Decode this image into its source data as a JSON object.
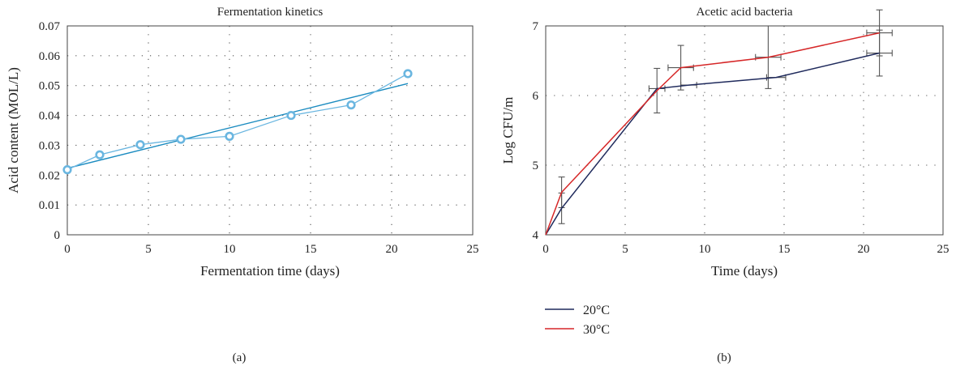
{
  "panel_labels": [
    "(a)",
    "(b)"
  ],
  "legend": {
    "items": [
      {
        "label": "20°C",
        "color": "#1f2a5c"
      },
      {
        "label": "30°C",
        "color": "#d62728"
      }
    ]
  },
  "chart_data": [
    {
      "type": "line",
      "title": "Fermentation kinetics",
      "xlabel": "Fermentation time (days)",
      "ylabel": "Acid content (MOL/L)",
      "xlim": [
        0,
        25
      ],
      "ylim": [
        0,
        0.07
      ],
      "xticks": [
        0,
        5,
        10,
        15,
        20,
        25
      ],
      "xtick_labels": [
        "0",
        "5",
        "10",
        "15",
        "20",
        "25"
      ],
      "yticks": [
        0,
        0.01,
        0.02,
        0.03,
        0.04,
        0.05,
        0.06,
        0.07
      ],
      "ytick_labels": [
        "0",
        "0.01",
        "0.02",
        "0.03",
        "0.04",
        "0.05",
        "0.06",
        "0.07"
      ],
      "grid": true,
      "grid_style": "dotted",
      "series": [
        {
          "kind": "markers-line",
          "color": "#6ab6e0",
          "x": [
            0,
            2,
            4.5,
            7,
            10,
            13.8,
            17.5,
            21
          ],
          "y": [
            0.0218,
            0.0268,
            0.0302,
            0.032,
            0.033,
            0.04,
            0.0435,
            0.054
          ]
        },
        {
          "kind": "trend-line",
          "color": "#1a8bc0",
          "x": [
            0,
            21
          ],
          "y": [
            0.0223,
            0.0507
          ]
        }
      ]
    },
    {
      "type": "line",
      "title": "Acetic acid bacteria",
      "xlabel": "Time (days)",
      "ylabel": "Log CFU/m",
      "xlim": [
        0,
        25
      ],
      "ylim": [
        4,
        7
      ],
      "xticks": [
        0,
        5,
        10,
        15,
        20,
        25
      ],
      "xtick_labels": [
        "0",
        "5",
        "10",
        "15",
        "20",
        "25"
      ],
      "yticks": [
        4,
        5,
        6,
        7
      ],
      "ytick_labels": [
        "4",
        "5",
        "6",
        "7"
      ],
      "grid": true,
      "grid_style": "dotted",
      "series": [
        {
          "name": "20°C",
          "color": "#1f2a5c",
          "x": [
            0,
            1,
            7,
            9,
            14.5,
            21
          ],
          "y": [
            4.0,
            4.38,
            6.1,
            6.15,
            6.26,
            6.61
          ],
          "yerr": [
            0,
            0.22,
            0,
            0,
            0,
            0.33
          ],
          "xerr": [
            0,
            0,
            0.5,
            0.5,
            0.6,
            0.8
          ]
        },
        {
          "name": "30°C",
          "color": "#d62728",
          "x": [
            0,
            1,
            7,
            8.5,
            14,
            21
          ],
          "y": [
            4.0,
            4.61,
            6.07,
            6.4,
            6.55,
            6.9
          ],
          "yerr": [
            0,
            0.22,
            0.32,
            0.32,
            0.45,
            0.33
          ],
          "xerr": [
            0,
            0,
            0,
            0.8,
            0.8,
            0.8
          ]
        }
      ]
    }
  ]
}
